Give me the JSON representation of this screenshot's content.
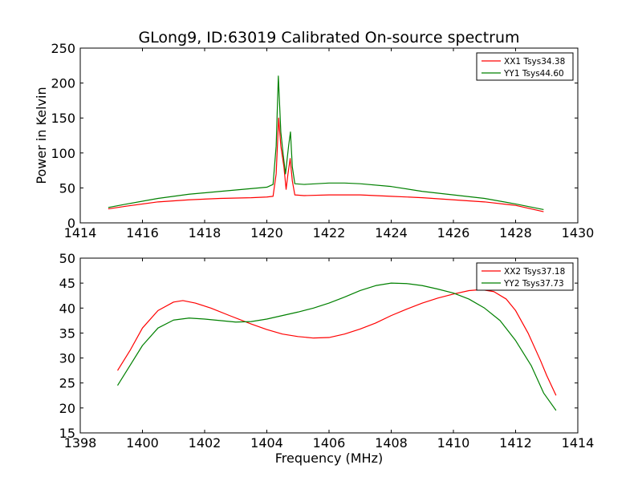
{
  "chart_data": [
    {
      "type": "line",
      "title": "GLong9, ID:63019 Calibrated On-source spectrum",
      "xlabel": "",
      "ylabel": "Power in Kelvin",
      "xlim": [
        1414,
        1430
      ],
      "ylim": [
        0,
        250
      ],
      "xticks": [
        1414,
        1416,
        1418,
        1420,
        1422,
        1424,
        1426,
        1428,
        1430
      ],
      "yticks": [
        0,
        50,
        100,
        150,
        200,
        250
      ],
      "grid": false,
      "legend": "top-right",
      "series": [
        {
          "name": "XX1 Tsys34.38",
          "color": "#ff0000",
          "points": [
            [
              1414.9,
              20
            ],
            [
              1415.5,
              24
            ],
            [
              1416.5,
              30
            ],
            [
              1417.5,
              33
            ],
            [
              1418.5,
              35
            ],
            [
              1419.5,
              36
            ],
            [
              1420.0,
              37
            ],
            [
              1420.2,
              38
            ],
            [
              1420.3,
              70
            ],
            [
              1420.38,
              150
            ],
            [
              1420.45,
              110
            ],
            [
              1420.55,
              80
            ],
            [
              1420.62,
              48
            ],
            [
              1420.68,
              70
            ],
            [
              1420.75,
              92
            ],
            [
              1420.82,
              60
            ],
            [
              1420.9,
              40
            ],
            [
              1421.2,
              39
            ],
            [
              1422,
              40
            ],
            [
              1423,
              40
            ],
            [
              1424,
              38
            ],
            [
              1425,
              36
            ],
            [
              1426,
              33
            ],
            [
              1427,
              30
            ],
            [
              1428,
              25
            ],
            [
              1428.9,
              16
            ]
          ]
        },
        {
          "name": "YY1 Tsys44.60",
          "color": "#008000",
          "points": [
            [
              1414.9,
              22
            ],
            [
              1415.5,
              27
            ],
            [
              1416.5,
              35
            ],
            [
              1417.5,
              41
            ],
            [
              1418.5,
              45
            ],
            [
              1419.5,
              49
            ],
            [
              1420.0,
              51
            ],
            [
              1420.2,
              55
            ],
            [
              1420.3,
              110
            ],
            [
              1420.37,
              210
            ],
            [
              1420.45,
              130
            ],
            [
              1420.52,
              100
            ],
            [
              1420.6,
              70
            ],
            [
              1420.7,
              110
            ],
            [
              1420.76,
              130
            ],
            [
              1420.82,
              80
            ],
            [
              1420.9,
              56
            ],
            [
              1421.2,
              55
            ],
            [
              1422,
              57
            ],
            [
              1422.5,
              57
            ],
            [
              1423,
              56
            ],
            [
              1424,
              52
            ],
            [
              1425,
              45
            ],
            [
              1426,
              40
            ],
            [
              1427,
              35
            ],
            [
              1428,
              27
            ],
            [
              1428.9,
              19
            ]
          ]
        }
      ]
    },
    {
      "type": "line",
      "title": "",
      "xlabel": "Frequency (MHz)",
      "ylabel": "",
      "xlim": [
        1398,
        1414
      ],
      "ylim": [
        15,
        50
      ],
      "xticks": [
        1398,
        1400,
        1402,
        1404,
        1406,
        1408,
        1410,
        1412,
        1414
      ],
      "yticks": [
        15,
        20,
        25,
        30,
        35,
        40,
        45,
        50
      ],
      "grid": false,
      "legend": "top-right",
      "series": [
        {
          "name": "XX2 Tsys37.18",
          "color": "#ff0000",
          "points": [
            [
              1399.2,
              27.5
            ],
            [
              1399.6,
              31.5
            ],
            [
              1400.0,
              36
            ],
            [
              1400.5,
              39.5
            ],
            [
              1401.0,
              41.2
            ],
            [
              1401.3,
              41.5
            ],
            [
              1401.7,
              41
            ],
            [
              1402.2,
              40
            ],
            [
              1402.8,
              38.5
            ],
            [
              1403.5,
              36.8
            ],
            [
              1404.0,
              35.7
            ],
            [
              1404.5,
              34.8
            ],
            [
              1405.0,
              34.3
            ],
            [
              1405.5,
              34
            ],
            [
              1406.0,
              34.1
            ],
            [
              1406.5,
              34.8
            ],
            [
              1407.0,
              35.8
            ],
            [
              1407.5,
              37
            ],
            [
              1408.0,
              38.5
            ],
            [
              1408.5,
              39.8
            ],
            [
              1409.0,
              41
            ],
            [
              1409.5,
              42
            ],
            [
              1410.0,
              42.8
            ],
            [
              1410.5,
              43.5
            ],
            [
              1410.9,
              43.7
            ],
            [
              1411.3,
              43.3
            ],
            [
              1411.7,
              41.8
            ],
            [
              1412.0,
              39.5
            ],
            [
              1412.4,
              35
            ],
            [
              1412.8,
              29.5
            ],
            [
              1413.0,
              26.5
            ],
            [
              1413.3,
              22.5
            ]
          ]
        },
        {
          "name": "YY2 Tsys37.73",
          "color": "#008000",
          "points": [
            [
              1399.2,
              24.5
            ],
            [
              1399.6,
              28.5
            ],
            [
              1400.0,
              32.5
            ],
            [
              1400.5,
              36
            ],
            [
              1401.0,
              37.6
            ],
            [
              1401.5,
              38
            ],
            [
              1402.0,
              37.8
            ],
            [
              1402.5,
              37.5
            ],
            [
              1403.0,
              37.2
            ],
            [
              1403.5,
              37.3
            ],
            [
              1404.0,
              37.8
            ],
            [
              1404.5,
              38.5
            ],
            [
              1405.0,
              39.2
            ],
            [
              1405.5,
              40
            ],
            [
              1406.0,
              41
            ],
            [
              1406.5,
              42.2
            ],
            [
              1407.0,
              43.5
            ],
            [
              1407.5,
              44.5
            ],
            [
              1408.0,
              45
            ],
            [
              1408.5,
              44.9
            ],
            [
              1409.0,
              44.5
            ],
            [
              1409.5,
              43.8
            ],
            [
              1410.0,
              43
            ],
            [
              1410.5,
              41.8
            ],
            [
              1411.0,
              40
            ],
            [
              1411.5,
              37.5
            ],
            [
              1412.0,
              33.5
            ],
            [
              1412.5,
              28.5
            ],
            [
              1412.9,
              23
            ],
            [
              1413.3,
              19.5
            ]
          ]
        }
      ]
    }
  ]
}
